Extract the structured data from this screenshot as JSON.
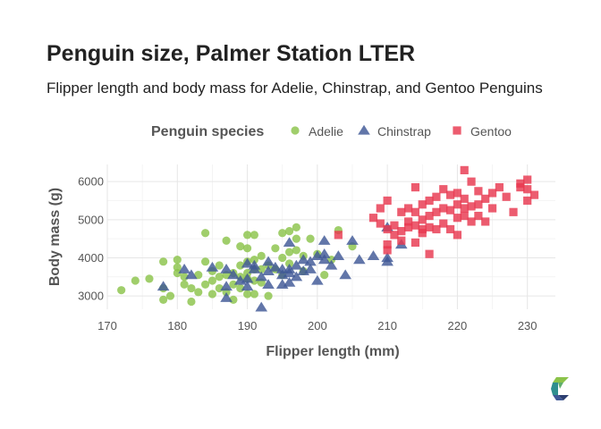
{
  "header": {
    "title": "Penguin size, Palmer Station LTER",
    "subtitle": "Flipper length and body mass for Adelie, Chinstrap, and Gentoo Penguins"
  },
  "legend": {
    "title": "Penguin species",
    "position": "top"
  },
  "colors": {
    "adelie": "#8bc34a",
    "chinstrap": "#3f5896",
    "gentoo": "#e8384f",
    "grid": "#e6e6e6"
  },
  "chart_data": {
    "type": "scatter",
    "xlabel": "Flipper length (mm)",
    "ylabel": "Body mass (g)",
    "xlim": [
      170,
      234
    ],
    "ylim": [
      2650,
      6450
    ],
    "x_ticks": [
      170,
      180,
      190,
      200,
      210,
      220,
      230
    ],
    "y_ticks": [
      3000,
      4000,
      5000,
      6000
    ],
    "grid": true,
    "series": [
      {
        "name": "Adelie",
        "marker": "circle",
        "color": "#8bc34a",
        "points": [
          [
            172,
            3150
          ],
          [
            174,
            3400
          ],
          [
            176,
            3450
          ],
          [
            178,
            3900
          ],
          [
            178,
            3200
          ],
          [
            178,
            2900
          ],
          [
            179,
            3000
          ],
          [
            180,
            3950
          ],
          [
            180,
            3600
          ],
          [
            180,
            3750
          ],
          [
            181,
            3500
          ],
          [
            181,
            3300
          ],
          [
            182,
            3200
          ],
          [
            182,
            2850
          ],
          [
            183,
            3550
          ],
          [
            183,
            3100
          ],
          [
            184,
            3900
          ],
          [
            184,
            4650
          ],
          [
            184,
            3300
          ],
          [
            185,
            3650
          ],
          [
            185,
            3400
          ],
          [
            185,
            3050
          ],
          [
            186,
            3800
          ],
          [
            186,
            3500
          ],
          [
            186,
            3200
          ],
          [
            187,
            4450
          ],
          [
            187,
            3550
          ],
          [
            187,
            3100
          ],
          [
            188,
            3600
          ],
          [
            188,
            3300
          ],
          [
            188,
            2900
          ],
          [
            189,
            4300
          ],
          [
            189,
            3800
          ],
          [
            189,
            3500
          ],
          [
            189,
            3200
          ],
          [
            190,
            4600
          ],
          [
            190,
            4250
          ],
          [
            190,
            3900
          ],
          [
            190,
            3600
          ],
          [
            190,
            3450
          ],
          [
            190,
            3050
          ],
          [
            191,
            4600
          ],
          [
            191,
            3950
          ],
          [
            191,
            3700
          ],
          [
            191,
            3400
          ],
          [
            191,
            3050
          ],
          [
            192,
            4050
          ],
          [
            192,
            3700
          ],
          [
            192,
            3350
          ],
          [
            193,
            3800
          ],
          [
            193,
            3000
          ],
          [
            194,
            4250
          ],
          [
            194,
            3700
          ],
          [
            195,
            4650
          ],
          [
            195,
            4000
          ],
          [
            195,
            3550
          ],
          [
            196,
            4700
          ],
          [
            196,
            4150
          ],
          [
            196,
            3850
          ],
          [
            197,
            4500
          ],
          [
            197,
            4200
          ],
          [
            197,
            4800
          ],
          [
            198,
            4050
          ],
          [
            198,
            3650
          ],
          [
            199,
            4500
          ],
          [
            200,
            4100
          ],
          [
            201,
            3550
          ],
          [
            202,
            3950
          ],
          [
            203,
            4725
          ],
          [
            205,
            4300
          ]
        ]
      },
      {
        "name": "Chinstrap",
        "marker": "triangle",
        "color": "#3f5896",
        "points": [
          [
            178,
            3250
          ],
          [
            181,
            3700
          ],
          [
            182,
            3550
          ],
          [
            185,
            3750
          ],
          [
            187,
            3250
          ],
          [
            187,
            2950
          ],
          [
            187,
            3700
          ],
          [
            188,
            3550
          ],
          [
            189,
            3400
          ],
          [
            190,
            3850
          ],
          [
            190,
            3450
          ],
          [
            190,
            3250
          ],
          [
            191,
            3700
          ],
          [
            191,
            3800
          ],
          [
            192,
            3500
          ],
          [
            192,
            2700
          ],
          [
            193,
            3300
          ],
          [
            193,
            3900
          ],
          [
            193,
            3650
          ],
          [
            194,
            3750
          ],
          [
            195,
            3700
          ],
          [
            195,
            3550
          ],
          [
            195,
            3300
          ],
          [
            196,
            3700
          ],
          [
            196,
            4400
          ],
          [
            196,
            3600
          ],
          [
            196,
            3350
          ],
          [
            197,
            3800
          ],
          [
            197,
            3500
          ],
          [
            198,
            3650
          ],
          [
            198,
            3950
          ],
          [
            199,
            3900
          ],
          [
            199,
            3700
          ],
          [
            200,
            3400
          ],
          [
            200,
            4050
          ],
          [
            201,
            4100
          ],
          [
            201,
            4450
          ],
          [
            201,
            3950
          ],
          [
            202,
            3800
          ],
          [
            203,
            4050
          ],
          [
            204,
            3550
          ],
          [
            205,
            4450
          ],
          [
            206,
            3950
          ],
          [
            208,
            4050
          ],
          [
            210,
            4800
          ],
          [
            210,
            4000
          ],
          [
            210,
            3900
          ],
          [
            212,
            4350
          ]
        ]
      },
      {
        "name": "Gentoo",
        "marker": "square",
        "color": "#e8384f",
        "points": [
          [
            203,
            4600
          ],
          [
            208,
            5050
          ],
          [
            209,
            5300
          ],
          [
            209,
            4900
          ],
          [
            210,
            5500
          ],
          [
            210,
            4750
          ],
          [
            210,
            4350
          ],
          [
            210,
            4200
          ],
          [
            211,
            4600
          ],
          [
            211,
            4850
          ],
          [
            212,
            5200
          ],
          [
            212,
            4450
          ],
          [
            212,
            4700
          ],
          [
            213,
            5300
          ],
          [
            213,
            4950
          ],
          [
            213,
            4800
          ],
          [
            214,
            5850
          ],
          [
            214,
            5200
          ],
          [
            214,
            4850
          ],
          [
            214,
            4400
          ],
          [
            215,
            5400
          ],
          [
            215,
            5000
          ],
          [
            215,
            4750
          ],
          [
            215,
            4650
          ],
          [
            216,
            5500
          ],
          [
            216,
            5100
          ],
          [
            216,
            4800
          ],
          [
            216,
            4100
          ],
          [
            217,
            5600
          ],
          [
            217,
            5200
          ],
          [
            217,
            4750
          ],
          [
            218,
            5800
          ],
          [
            218,
            5300
          ],
          [
            218,
            4900
          ],
          [
            219,
            5650
          ],
          [
            219,
            5250
          ],
          [
            219,
            4750
          ],
          [
            220,
            5700
          ],
          [
            220,
            5400
          ],
          [
            220,
            5050
          ],
          [
            220,
            4600
          ],
          [
            221,
            6300
          ],
          [
            221,
            5550
          ],
          [
            221,
            5100
          ],
          [
            221,
            5300
          ],
          [
            222,
            6000
          ],
          [
            222,
            5350
          ],
          [
            222,
            4950
          ],
          [
            223,
            5750
          ],
          [
            223,
            5400
          ],
          [
            223,
            5100
          ],
          [
            224,
            5550
          ],
          [
            224,
            4950
          ],
          [
            225,
            5700
          ],
          [
            225,
            5300
          ],
          [
            226,
            5850
          ],
          [
            227,
            5600
          ],
          [
            228,
            5200
          ],
          [
            229,
            5850
          ],
          [
            229,
            5950
          ],
          [
            230,
            5800
          ],
          [
            230,
            5500
          ],
          [
            230,
            6050
          ],
          [
            231,
            5650
          ]
        ]
      }
    ]
  }
}
